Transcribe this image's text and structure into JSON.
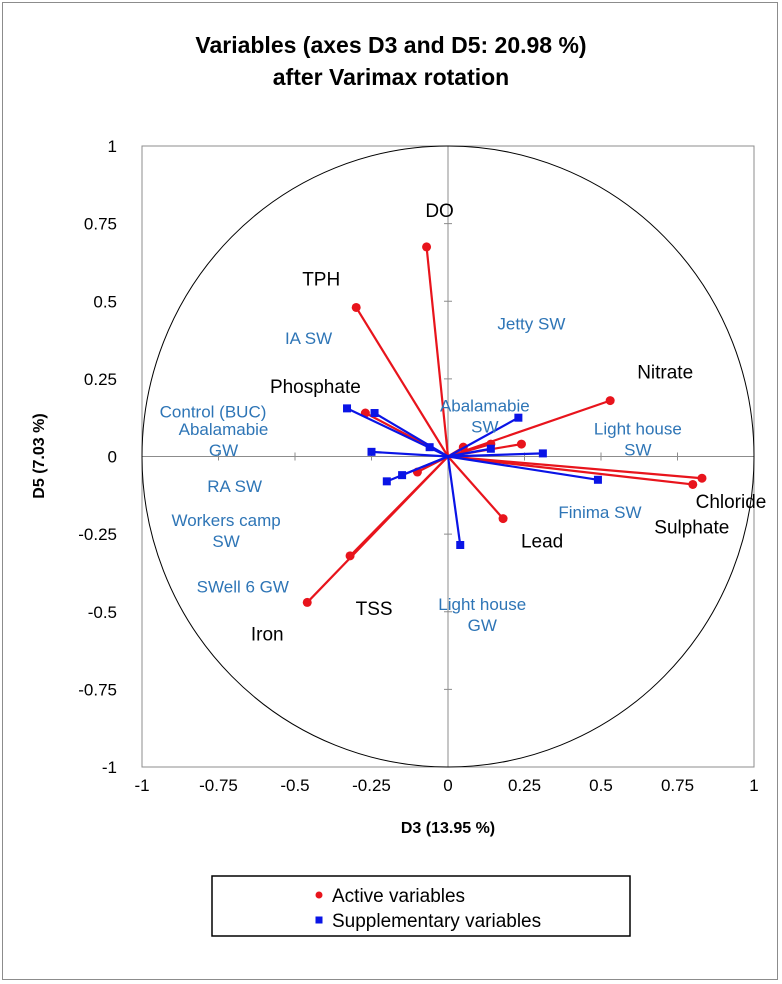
{
  "chart_data": {
    "type": "scatter",
    "title": [
      "Variables (axes D3 and D5: 20.98 %)",
      "after Varimax rotation"
    ],
    "xlabel": "D3 (13.95 %)",
    "ylabel": "D5 (7.03 %)",
    "xlim": [
      -1,
      1
    ],
    "ylim": [
      -1,
      1
    ],
    "xticks": [
      "-1",
      "-0.75",
      "-0.5",
      "-0.25",
      "0",
      "0.25",
      "0.5",
      "0.75",
      "1"
    ],
    "yticks": [
      "1",
      "0.75",
      "0.5",
      "0.25",
      "0",
      "-0.25",
      "-0.5",
      "-0.75",
      "-1"
    ],
    "grid": false,
    "correlation_circle": true,
    "legend_placement": "bottom",
    "colors": {
      "active": "#e8141c",
      "supplementary": "#0a14e6",
      "supp_label": "#2e75b6"
    },
    "legend": [
      {
        "name": "Active variables",
        "marker": "circle",
        "color": "#e8141c"
      },
      {
        "name": "Supplementary variables",
        "marker": "square",
        "color": "#0a14e6"
      }
    ],
    "active_variables": [
      {
        "name": "DO",
        "x": -0.07,
        "y": 0.675,
        "label_lines": [
          "DO"
        ]
      },
      {
        "name": "TPH",
        "x": -0.3,
        "y": 0.48,
        "label_lines": [
          "TPH"
        ]
      },
      {
        "name": "Phosphate",
        "x": -0.27,
        "y": 0.14,
        "label_lines": [
          "Phosphate"
        ]
      },
      {
        "name": "Nitrate",
        "x": 0.53,
        "y": 0.18,
        "label_lines": [
          "Nitrate"
        ]
      },
      {
        "name": "Chloride",
        "x": 0.83,
        "y": -0.07,
        "label_lines": [
          "Chloride"
        ]
      },
      {
        "name": "Sulphate",
        "x": 0.8,
        "y": -0.09,
        "label_lines": [
          "Sulphate"
        ]
      },
      {
        "name": "Lead",
        "x": 0.18,
        "y": -0.2,
        "label_lines": [
          "Lead"
        ]
      },
      {
        "name": "TSS",
        "x": -0.32,
        "y": -0.32,
        "label_lines": [
          "TSS"
        ]
      },
      {
        "name": "Iron",
        "x": -0.46,
        "y": -0.47,
        "label_lines": [
          "Iron"
        ]
      },
      {
        "name": "",
        "x": 0.24,
        "y": 0.04,
        "label_lines": []
      },
      {
        "name": "",
        "x": 0.14,
        "y": 0.04,
        "label_lines": []
      },
      {
        "name": "",
        "x": 0.05,
        "y": 0.03,
        "label_lines": []
      },
      {
        "name": "",
        "x": -0.1,
        "y": -0.05,
        "label_lines": []
      }
    ],
    "supplementary_variables": [
      {
        "name": "IA SW",
        "x": -0.24,
        "y": 0.14,
        "label_lines": [
          "IA SW"
        ]
      },
      {
        "name": "Jetty SW",
        "x": 0.23,
        "y": 0.125,
        "label_lines": [
          "Jetty SW"
        ]
      },
      {
        "name": "Control (BUC)",
        "x": -0.33,
        "y": 0.155,
        "label_lines": [
          "Control (BUC)"
        ]
      },
      {
        "name": "Abalamabie GW",
        "x": -0.25,
        "y": 0.015,
        "label_lines": [
          "Abalamabie",
          "GW"
        ]
      },
      {
        "name": "Abalamabie SW",
        "x": 0.14,
        "y": 0.025,
        "label_lines": [
          "Abalamabie",
          "SW"
        ]
      },
      {
        "name": "Light house SW",
        "x": 0.31,
        "y": 0.01,
        "label_lines": [
          "Light house",
          "SW"
        ]
      },
      {
        "name": "RA SW",
        "x": -0.06,
        "y": 0.03,
        "label_lines": [
          "RA SW"
        ]
      },
      {
        "name": "Workers camp SW",
        "x": -0.15,
        "y": -0.06,
        "label_lines": [
          "Workers camp",
          "SW"
        ]
      },
      {
        "name": "SWell 6 GW",
        "x": -0.2,
        "y": -0.08,
        "label_lines": [
          "SWell 6 GW"
        ]
      },
      {
        "name": "Finima SW",
        "x": 0.49,
        "y": -0.075,
        "label_lines": [
          "Finima SW"
        ]
      },
      {
        "name": "Light house GW",
        "x": 0.04,
        "y": -0.285,
        "label_lines": [
          "Light house",
          "GW"
        ]
      }
    ]
  }
}
